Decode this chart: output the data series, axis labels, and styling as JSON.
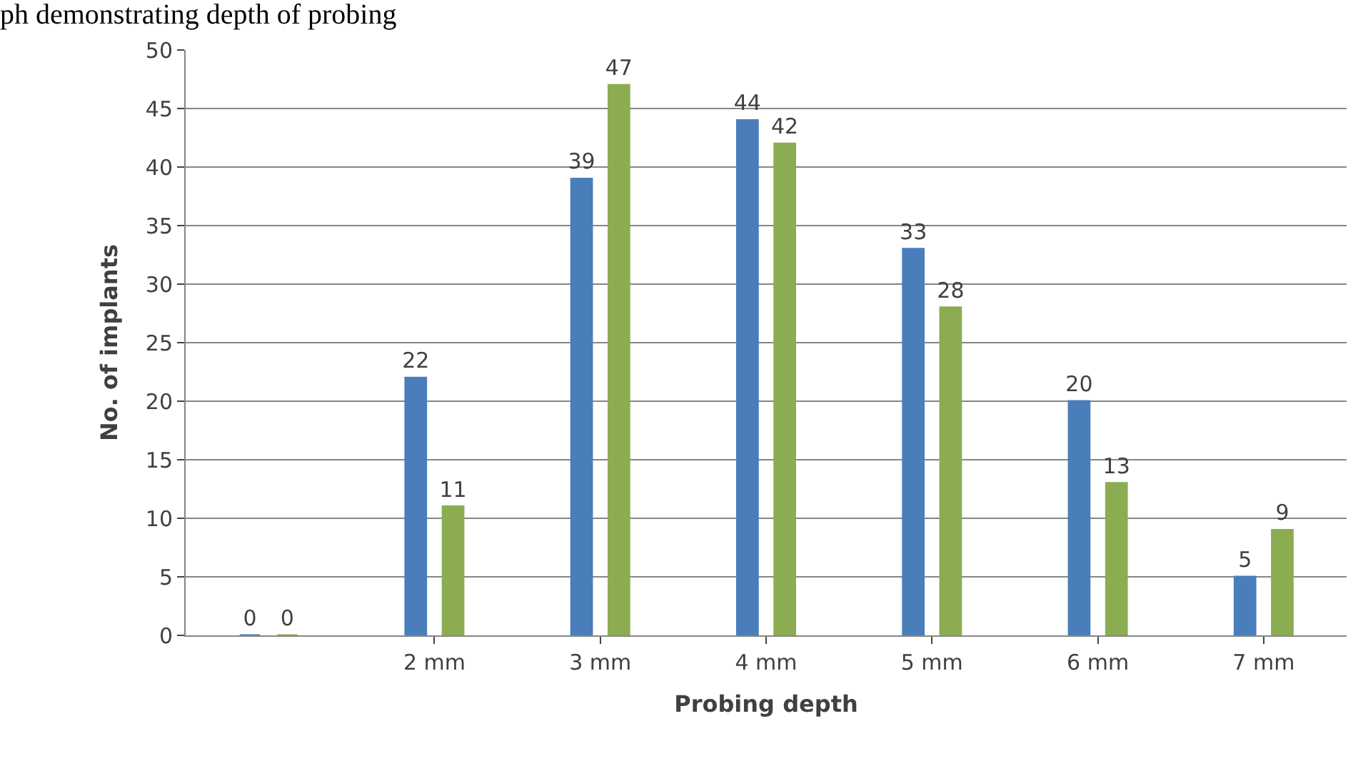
{
  "chart_data": {
    "type": "bar",
    "title": "ph demonstrating depth of probing",
    "xlabel": "Probing depth",
    "ylabel": "No. of implants",
    "categories": [
      null,
      "2 mm",
      "3 mm",
      "4 mm",
      "5 mm",
      "6 mm",
      "7 mm"
    ],
    "series": [
      {
        "color": "#4a7ebb",
        "values": [
          0,
          22,
          39,
          44,
          33,
          20,
          5
        ]
      },
      {
        "color": "#8cac52",
        "values": [
          0,
          11,
          47,
          42,
          28,
          13,
          9
        ]
      }
    ],
    "ylim": [
      0,
      50
    ],
    "yticks": [
      0,
      5,
      10,
      15,
      20,
      25,
      30,
      35,
      40,
      45,
      50
    ],
    "grid": "y",
    "legend": false,
    "data_labels": true
  }
}
